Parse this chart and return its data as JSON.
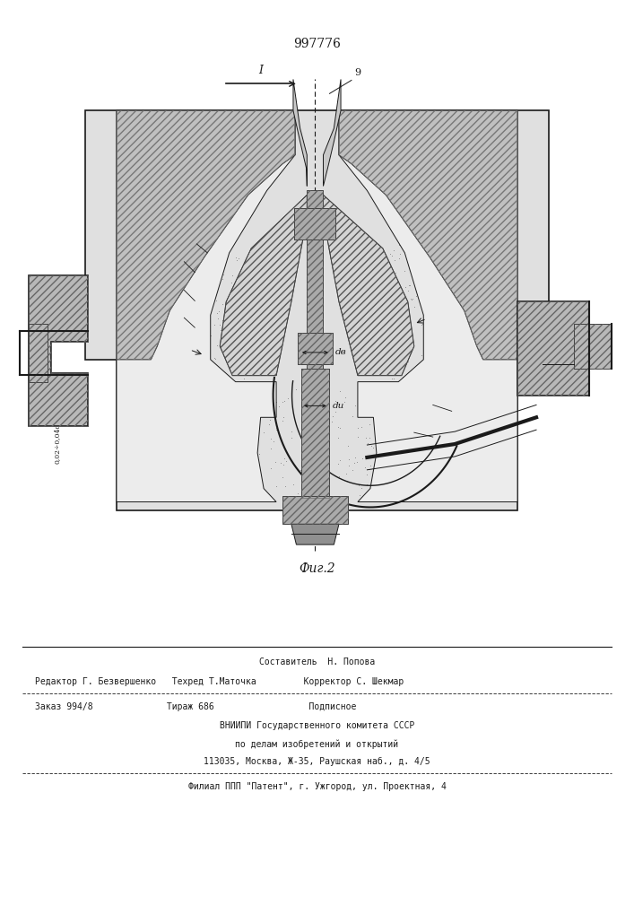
{
  "patent_number": "997776",
  "fig_label": "Фиг.2",
  "line_color": "#1a1a1a",
  "footer_lines": [
    "Составитель  Н. Попова",
    "Редактор Г. Безвершенко   Техред Т.Маточка         Корректор С. Шекмар",
    "Заказ 994/8              Тираж 686                  Подписное",
    "ВНИИПИ Государственного комитета СССР",
    "по делам изобретений и открытий",
    "113035, Москва, Ж-35, Раушская наб., д. 4/5",
    "Филиал ППП \"Патент\", г. Ужгород, ул. Проектная, 4"
  ]
}
